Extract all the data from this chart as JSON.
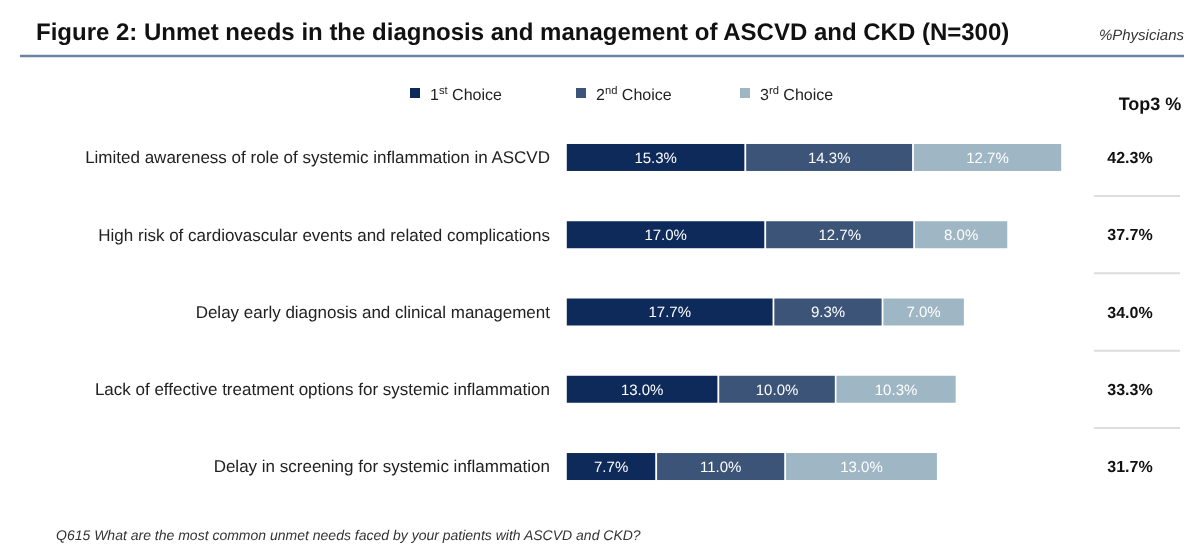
{
  "chart_data": {
    "type": "bar",
    "orientation": "horizontal",
    "stacked": true,
    "title": "Figure 2: Unmet needs in the diagnosis and management of ASCVD and CKD (N=300)",
    "subtitle": "%Physicians",
    "categories": [
      "Limited awareness of role of systemic inflammation in ASCVD",
      "High risk of cardiovascular events and related complications",
      "Delay early diagnosis and clinical management",
      "Lack of effective treatment options for systemic inflammation",
      "Delay in screening for systemic inflammation"
    ],
    "series": [
      {
        "name": "1$^{st}$ Choice",
        "color": "#0e2a5a",
        "values": [
          15.3,
          17.0,
          17.7,
          13.0,
          7.7
        ],
        "value_labels": [
          "15.3%",
          "17.0%",
          "17.7%",
          "13.0%",
          "7.7%"
        ]
      },
      {
        "name": "2$^{nd}$ Choice",
        "color": "#3b5478",
        "values": [
          14.3,
          12.7,
          9.3,
          10.0,
          11.0
        ],
        "value_labels": [
          "14.3%",
          "12.7%",
          "9.3%",
          "10.0%",
          "11.0%"
        ]
      },
      {
        "name": "3$^{rd}$ Choice",
        "color": "#9fb6c4",
        "values": [
          12.7,
          8.0,
          7.0,
          10.3,
          13.0
        ],
        "value_labels": [
          "12.7%",
          "8.0%",
          "7.0%",
          "10.3%",
          "13.0%"
        ]
      }
    ],
    "legend": "top",
    "annotations": [
      "Top3 %",
      "42.3%",
      "37.7%",
      "34.0%",
      "33.3%",
      "31.7%",
      "Q615 What are the most common unmet needs faced by your patients with ASCVD and CKD?"
    ]
  }
}
